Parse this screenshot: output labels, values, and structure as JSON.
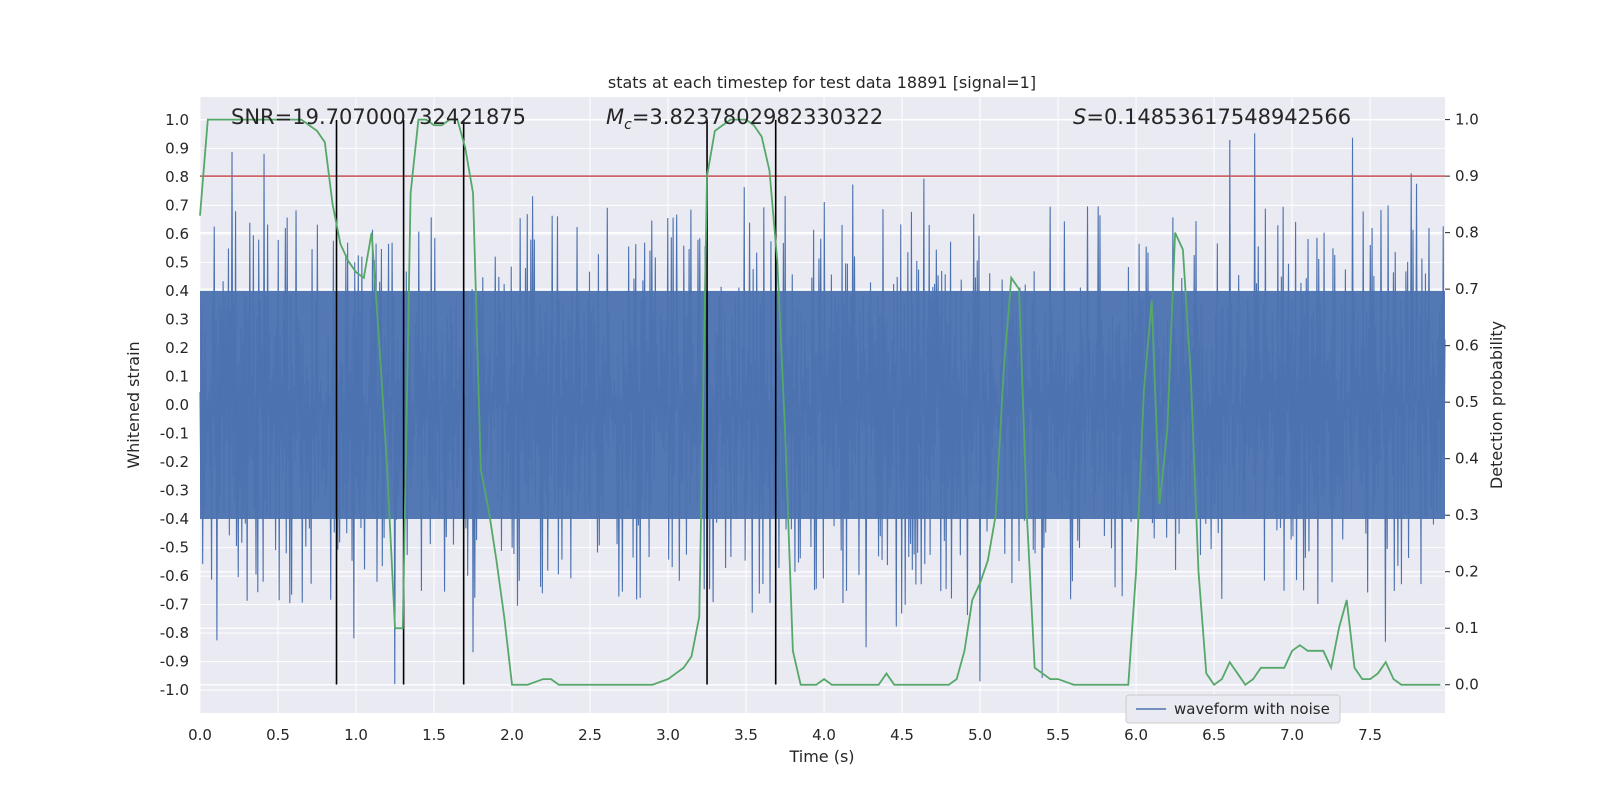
{
  "chart_data": {
    "type": "line",
    "title": "stats at each timestep for test data 18891 [signal=1]",
    "xlabel": "Time (s)",
    "ylabel_left": "Whitened strain",
    "ylabel_right": "Detection probability",
    "xlim": [
      0.0,
      7.98
    ],
    "ylim_left": [
      -1.08,
      1.08
    ],
    "ylim_right": [
      -0.05,
      1.04
    ],
    "x_ticks": [
      "0.0",
      "0.5",
      "1.0",
      "1.5",
      "2.0",
      "2.5",
      "3.0",
      "3.5",
      "4.0",
      "4.5",
      "5.0",
      "5.5",
      "6.0",
      "6.5",
      "7.0",
      "7.5"
    ],
    "y_left_ticks": [
      "-1.0",
      "-0.9",
      "-0.8",
      "-0.7",
      "-0.6",
      "-0.5",
      "-0.4",
      "-0.3",
      "-0.2",
      "-0.1",
      "0.0",
      "0.1",
      "0.2",
      "0.3",
      "0.4",
      "0.5",
      "0.6",
      "0.7",
      "0.8",
      "0.9",
      "1.0"
    ],
    "y_right_ticks": [
      "0.0",
      "0.1",
      "0.2",
      "0.3",
      "0.4",
      "0.5",
      "0.6",
      "0.7",
      "0.8",
      "0.9",
      "1.0"
    ],
    "grid": true,
    "legend": {
      "entries": [
        "waveform with noise"
      ],
      "placement": "lower-right"
    },
    "annotations": {
      "snr_label": "SNR=19.707000732421875",
      "mc_symbol": "M",
      "mc_subscript": "c",
      "mc_value": "=3.8237802982330322",
      "s_symbol": "S",
      "s_value": "=0.14853617548942566"
    },
    "threshold": {
      "axis": "right",
      "value": 0.9,
      "color": "#c44e52"
    },
    "vertical_markers": {
      "x": [
        0.875,
        1.305,
        1.69,
        3.25,
        3.69
      ],
      "y_range_left": [
        -0.98,
        1.0
      ],
      "color": "#000000"
    },
    "waveform": {
      "name": "waveform with noise",
      "color": "#4c72b0",
      "n_points": 1400,
      "core_amplitude": 0.4,
      "spike_max": 1.0,
      "spike_min": -0.98
    },
    "probability_series": {
      "name": "Detection probability",
      "color": "#55a868",
      "axis": "right",
      "x": [
        0.0,
        0.05,
        0.1,
        0.15,
        0.2,
        0.3,
        0.4,
        0.5,
        0.6,
        0.65,
        0.7,
        0.75,
        0.8,
        0.85,
        0.9,
        0.95,
        1.0,
        1.05,
        1.1,
        1.15,
        1.2,
        1.25,
        1.3,
        1.35,
        1.4,
        1.45,
        1.5,
        1.55,
        1.6,
        1.65,
        1.7,
        1.75,
        1.8,
        1.85,
        1.9,
        1.95,
        2.0,
        2.05,
        2.1,
        2.2,
        2.25,
        2.3,
        2.4,
        2.5,
        2.6,
        2.7,
        2.8,
        2.9,
        3.0,
        3.05,
        3.1,
        3.15,
        3.2,
        3.25,
        3.3,
        3.35,
        3.4,
        3.5,
        3.55,
        3.6,
        3.65,
        3.7,
        3.75,
        3.8,
        3.85,
        3.9,
        3.95,
        4.0,
        4.05,
        4.1,
        4.2,
        4.3,
        4.35,
        4.4,
        4.45,
        4.5,
        4.55,
        4.6,
        4.7,
        4.8,
        4.85,
        4.9,
        4.95,
        5.0,
        5.05,
        5.1,
        5.15,
        5.2,
        5.25,
        5.3,
        5.35,
        5.4,
        5.45,
        5.5,
        5.6,
        5.7,
        5.8,
        5.9,
        5.95,
        6.0,
        6.05,
        6.1,
        6.15,
        6.2,
        6.25,
        6.3,
        6.35,
        6.4,
        6.45,
        6.5,
        6.55,
        6.6,
        6.65,
        6.7,
        6.75,
        6.8,
        6.85,
        6.9,
        6.95,
        7.0,
        7.05,
        7.1,
        7.15,
        7.2,
        7.25,
        7.3,
        7.35,
        7.4,
        7.45,
        7.5,
        7.55,
        7.6,
        7.65,
        7.7,
        7.75,
        7.8,
        7.85,
        7.9,
        7.95
      ],
      "y": [
        0.83,
        1.0,
        1.0,
        1.0,
        1.0,
        1.0,
        1.0,
        1.0,
        1.0,
        1.0,
        0.99,
        0.98,
        0.96,
        0.85,
        0.78,
        0.75,
        0.73,
        0.72,
        0.8,
        0.6,
        0.38,
        0.1,
        0.1,
        0.87,
        1.0,
        1.0,
        0.99,
        0.99,
        1.0,
        1.0,
        0.95,
        0.87,
        0.38,
        0.31,
        0.22,
        0.12,
        0.0,
        0.0,
        0.0,
        0.01,
        0.01,
        0.0,
        0.0,
        0.0,
        0.0,
        0.0,
        0.0,
        0.0,
        0.01,
        0.02,
        0.03,
        0.05,
        0.12,
        0.9,
        0.98,
        0.99,
        1.0,
        1.0,
        0.99,
        0.97,
        0.91,
        0.75,
        0.45,
        0.06,
        0.0,
        0.0,
        0.0,
        0.01,
        0.0,
        0.0,
        0.0,
        0.0,
        0.0,
        0.02,
        0.0,
        0.0,
        0.0,
        0.0,
        0.0,
        0.0,
        0.01,
        0.06,
        0.15,
        0.18,
        0.22,
        0.3,
        0.55,
        0.72,
        0.7,
        0.3,
        0.03,
        0.02,
        0.01,
        0.01,
        0.0,
        0.0,
        0.0,
        0.0,
        0.0,
        0.2,
        0.52,
        0.68,
        0.32,
        0.45,
        0.8,
        0.77,
        0.55,
        0.2,
        0.02,
        0.0,
        0.01,
        0.04,
        0.02,
        0.0,
        0.01,
        0.03,
        0.03,
        0.03,
        0.03,
        0.06,
        0.07,
        0.06,
        0.06,
        0.06,
        0.03,
        0.1,
        0.15,
        0.03,
        0.01,
        0.01,
        0.02,
        0.04,
        0.01,
        0.0,
        0.0,
        0.0,
        0.0,
        0.0,
        0.0
      ]
    }
  }
}
